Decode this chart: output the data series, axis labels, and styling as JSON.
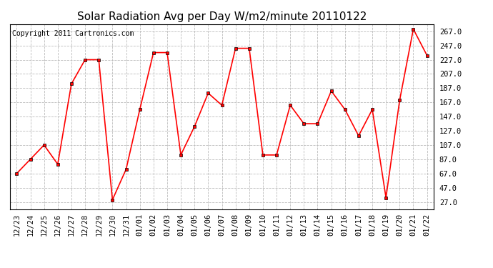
{
  "title": "Solar Radiation Avg per Day W/m2/minute 20110122",
  "copyright": "Copyright 2011 Cartronics.com",
  "labels": [
    "12/23",
    "12/24",
    "12/25",
    "12/26",
    "12/27",
    "12/28",
    "12/29",
    "12/30",
    "12/31",
    "01/01",
    "01/02",
    "01/03",
    "01/04",
    "01/05",
    "01/06",
    "01/07",
    "01/08",
    "01/09",
    "01/10",
    "01/11",
    "01/12",
    "01/13",
    "01/14",
    "01/15",
    "01/16",
    "01/17",
    "01/18",
    "01/19",
    "01/20",
    "01/21",
    "01/22"
  ],
  "values": [
    67,
    87,
    107,
    80,
    193,
    227,
    227,
    30,
    73,
    157,
    237,
    237,
    93,
    133,
    180,
    163,
    243,
    243,
    93,
    93,
    163,
    137,
    137,
    183,
    157,
    120,
    157,
    33,
    170,
    270,
    233
  ],
  "line_color": "#ff0000",
  "marker": "s",
  "marker_size": 3,
  "marker_color": "#000000",
  "background_color": "#ffffff",
  "plot_bg_color": "#ffffff",
  "grid_color": "#bbbbbb",
  "grid_style": "--",
  "ylim": [
    17,
    277
  ],
  "yticks": [
    27.0,
    47.0,
    67.0,
    87.0,
    107.0,
    127.0,
    147.0,
    167.0,
    187.0,
    207.0,
    227.0,
    247.0,
    267.0
  ],
  "title_fontsize": 11,
  "tick_fontsize": 7.5,
  "copyright_fontsize": 7
}
